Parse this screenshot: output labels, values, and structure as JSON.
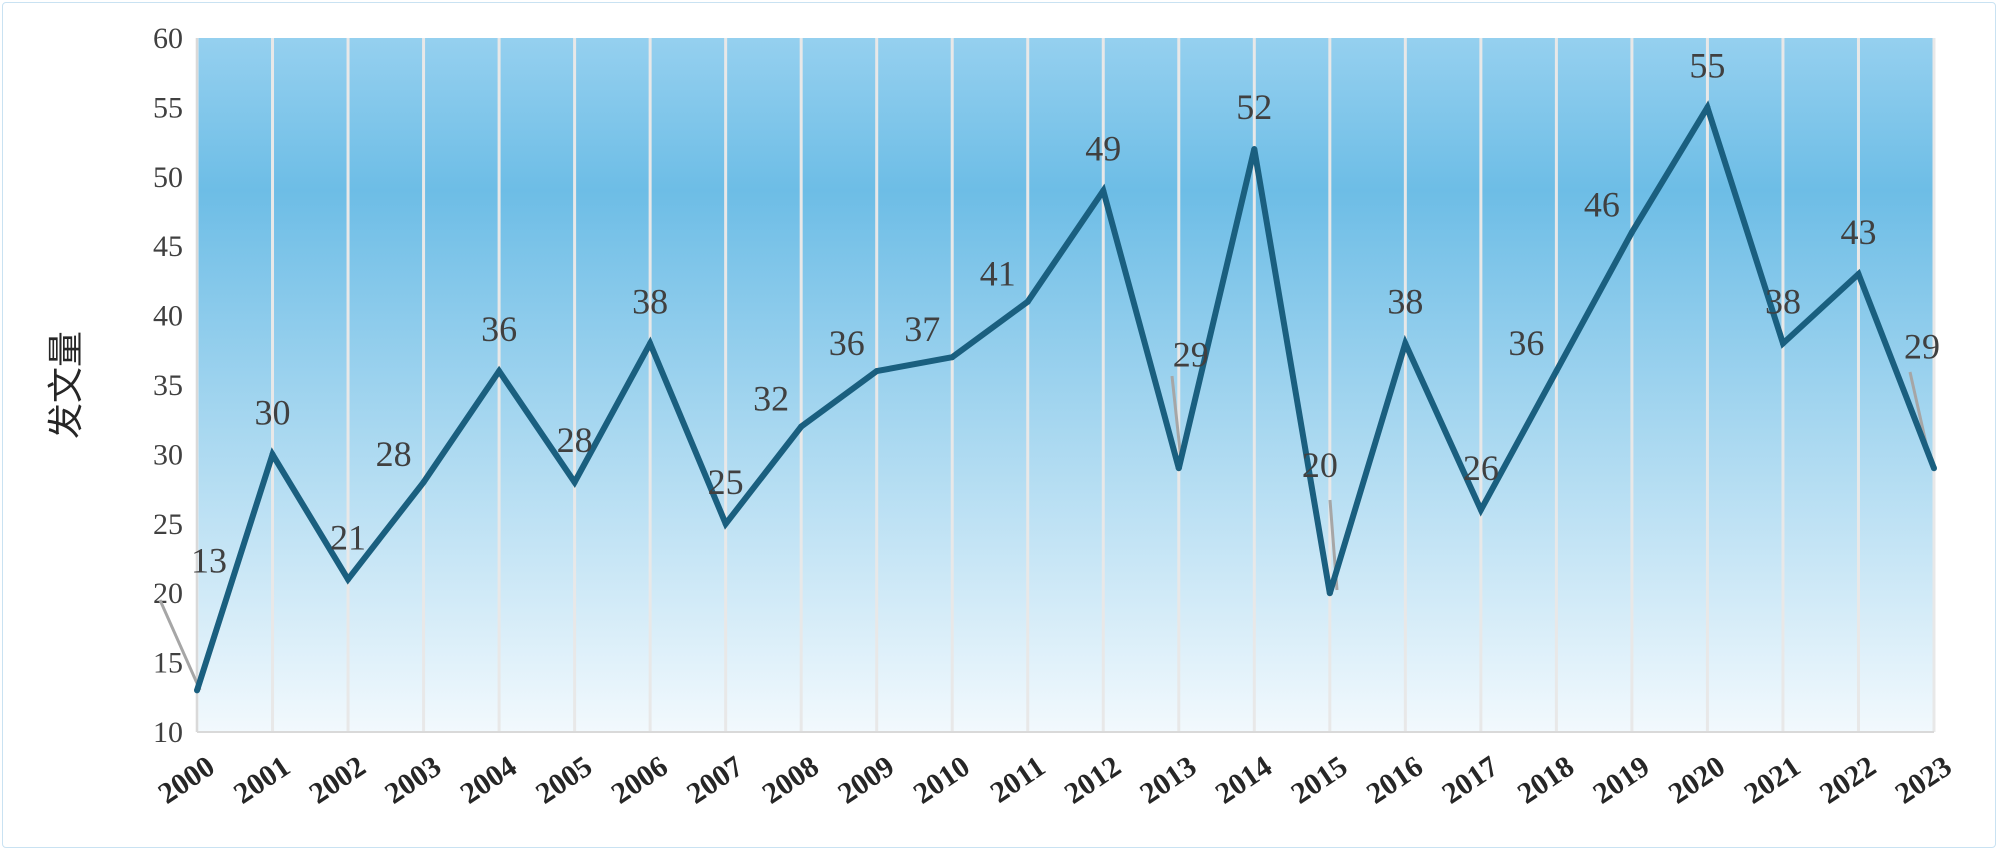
{
  "chart_data": {
    "type": "line",
    "title": "",
    "xlabel": "",
    "ylabel": "发文量",
    "ylim": [
      10,
      60
    ],
    "yticks": [
      10,
      15,
      20,
      25,
      30,
      35,
      40,
      45,
      50,
      55,
      60
    ],
    "x": [
      "2000",
      "2001",
      "2002",
      "2003",
      "2004",
      "2005",
      "2006",
      "2007",
      "2008",
      "2009",
      "2010",
      "2011",
      "2012",
      "2013",
      "2014",
      "2015",
      "2016",
      "2017",
      "2018",
      "2019",
      "2020",
      "2021",
      "2022",
      "2023"
    ],
    "values": [
      13,
      30,
      21,
      28,
      36,
      28,
      38,
      25,
      32,
      36,
      37,
      41,
      49,
      29,
      52,
      20,
      38,
      26,
      36,
      46,
      55,
      38,
      43,
      29
    ],
    "grid": "vertical",
    "legend": "none",
    "colors": {
      "line": "#1a5f7f",
      "grid": "#e8e8e8",
      "gradient_top": "#95d0ef",
      "gradient_mid": "#6dbde6",
      "gradient_bottom": "#f2f9fd",
      "leader": "#a6a6a6"
    }
  }
}
